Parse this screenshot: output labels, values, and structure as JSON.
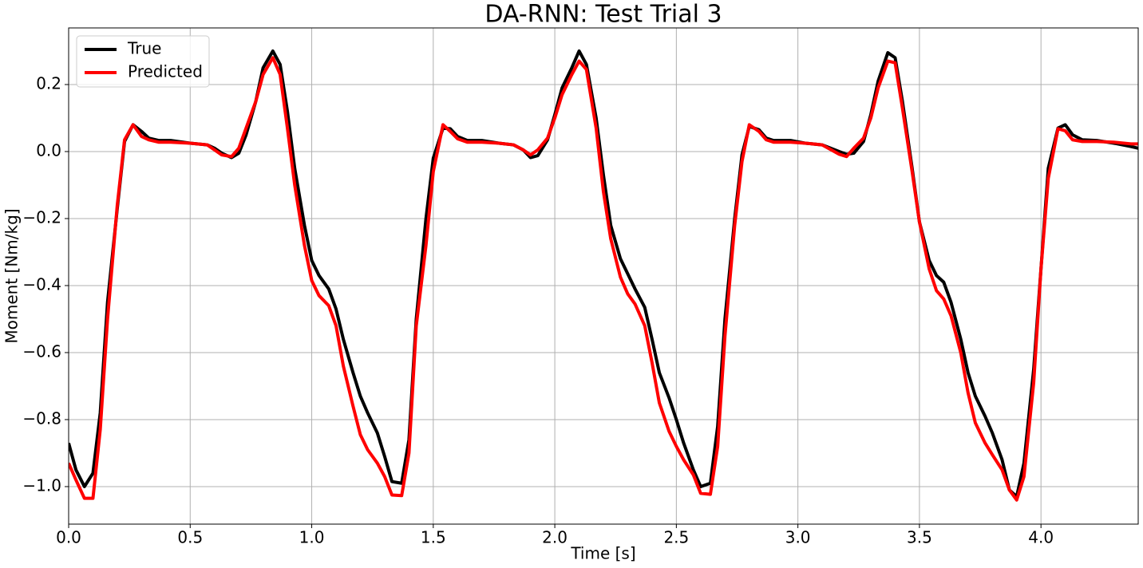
{
  "chart_data": {
    "type": "line",
    "title": "DA-RNN: Test Trial 3",
    "xlabel": "Time [s]",
    "ylabel": "Moment [Nm/kg]",
    "x": [
      0.0,
      0.03,
      0.065,
      0.1,
      0.13,
      0.16,
      0.2,
      0.23,
      0.265,
      0.3,
      0.33,
      0.37,
      0.42,
      0.5,
      0.57,
      0.6,
      0.63,
      0.67,
      0.7,
      0.73,
      0.77,
      0.8,
      0.84,
      0.87,
      0.9,
      0.93,
      0.97,
      1.0,
      1.03,
      1.07,
      1.1,
      1.13,
      1.17,
      1.2,
      1.23,
      1.27,
      1.3,
      1.33,
      1.37,
      1.4,
      1.43,
      1.47,
      1.5,
      1.54,
      1.57,
      1.6,
      1.64,
      1.7,
      1.77,
      1.83,
      1.87,
      1.9,
      1.93,
      1.97,
      2.0,
      2.03,
      2.07,
      2.1,
      2.13,
      2.17,
      2.2,
      2.23,
      2.27,
      2.3,
      2.33,
      2.37,
      2.4,
      2.43,
      2.47,
      2.5,
      2.53,
      2.57,
      2.6,
      2.64,
      2.67,
      2.7,
      2.74,
      2.77,
      2.8,
      2.84,
      2.87,
      2.9,
      2.97,
      3.03,
      3.1,
      3.17,
      3.2,
      3.23,
      3.27,
      3.3,
      3.33,
      3.37,
      3.4,
      3.43,
      3.47,
      3.5,
      3.54,
      3.57,
      3.6,
      3.63,
      3.67,
      3.7,
      3.73,
      3.77,
      3.8,
      3.84,
      3.87,
      3.9,
      3.93,
      3.97,
      4.0,
      4.03,
      4.07,
      4.1,
      4.13,
      4.17,
      4.23,
      4.3,
      4.37,
      4.4
    ],
    "series": [
      {
        "name": "True",
        "color": "#000000",
        "values": [
          -0.87,
          -0.95,
          -1.0,
          -0.96,
          -0.78,
          -0.45,
          -0.17,
          0.03,
          0.08,
          0.06,
          0.04,
          0.033,
          0.033,
          0.025,
          0.02,
          0.01,
          -0.005,
          -0.018,
          -0.005,
          0.05,
          0.15,
          0.25,
          0.3,
          0.26,
          0.12,
          -0.05,
          -0.22,
          -0.325,
          -0.37,
          -0.41,
          -0.47,
          -0.56,
          -0.66,
          -0.73,
          -0.78,
          -0.84,
          -0.91,
          -0.985,
          -0.99,
          -0.86,
          -0.5,
          -0.2,
          -0.02,
          0.07,
          0.068,
          0.045,
          0.033,
          0.033,
          0.025,
          0.02,
          0.005,
          -0.018,
          -0.012,
          0.035,
          0.11,
          0.19,
          0.25,
          0.3,
          0.26,
          0.1,
          -0.07,
          -0.22,
          -0.32,
          -0.365,
          -0.41,
          -0.465,
          -0.56,
          -0.66,
          -0.735,
          -0.8,
          -0.87,
          -0.95,
          -1.0,
          -0.99,
          -0.82,
          -0.5,
          -0.2,
          -0.01,
          0.075,
          0.065,
          0.04,
          0.033,
          0.033,
          0.025,
          0.02,
          0.0,
          -0.008,
          -0.005,
          0.03,
          0.11,
          0.21,
          0.295,
          0.28,
          0.15,
          -0.05,
          -0.21,
          -0.325,
          -0.37,
          -0.39,
          -0.45,
          -0.56,
          -0.66,
          -0.73,
          -0.79,
          -0.84,
          -0.92,
          -1.01,
          -1.03,
          -0.93,
          -0.65,
          -0.35,
          -0.05,
          0.07,
          0.08,
          0.05,
          0.035,
          0.033,
          0.025,
          0.015,
          0.01
        ]
      },
      {
        "name": "Predicted",
        "color": "#ff0000",
        "values": [
          -0.93,
          -0.98,
          -1.035,
          -1.035,
          -0.83,
          -0.5,
          -0.16,
          0.035,
          0.08,
          0.045,
          0.035,
          0.028,
          0.028,
          0.025,
          0.02,
          0.005,
          -0.01,
          -0.015,
          0.01,
          0.07,
          0.15,
          0.23,
          0.28,
          0.23,
          0.07,
          -0.1,
          -0.28,
          -0.385,
          -0.43,
          -0.46,
          -0.52,
          -0.64,
          -0.76,
          -0.845,
          -0.89,
          -0.93,
          -0.97,
          -1.025,
          -1.027,
          -0.9,
          -0.52,
          -0.28,
          -0.06,
          0.08,
          0.06,
          0.038,
          0.028,
          0.028,
          0.025,
          0.02,
          0.005,
          -0.01,
          0.005,
          0.04,
          0.1,
          0.17,
          0.23,
          0.27,
          0.245,
          0.07,
          -0.12,
          -0.26,
          -0.375,
          -0.425,
          -0.455,
          -0.52,
          -0.63,
          -0.75,
          -0.835,
          -0.88,
          -0.92,
          -0.965,
          -1.02,
          -1.023,
          -0.88,
          -0.55,
          -0.22,
          -0.03,
          0.08,
          0.06,
          0.035,
          0.028,
          0.028,
          0.025,
          0.02,
          -0.008,
          -0.015,
          0.01,
          0.04,
          0.1,
          0.19,
          0.27,
          0.265,
          0.13,
          -0.06,
          -0.21,
          -0.35,
          -0.415,
          -0.44,
          -0.49,
          -0.6,
          -0.72,
          -0.81,
          -0.87,
          -0.905,
          -0.95,
          -1.01,
          -1.04,
          -0.97,
          -0.69,
          -0.35,
          -0.08,
          0.068,
          0.062,
          0.035,
          0.03,
          0.03,
          0.028,
          0.023,
          0.023
        ]
      }
    ],
    "xlim": [
      0,
      4.4
    ],
    "ylim": [
      -1.112,
      0.369
    ],
    "xticks": [
      {
        "value": 0,
        "label": "0.0"
      },
      {
        "value": 0.5,
        "label": "0.5"
      },
      {
        "value": 1,
        "label": "1.0"
      },
      {
        "value": 1.5,
        "label": "1.5"
      },
      {
        "value": 2,
        "label": "2.0"
      },
      {
        "value": 2.5,
        "label": "2.5"
      },
      {
        "value": 3,
        "label": "3.0"
      },
      {
        "value": 3.5,
        "label": "3.5"
      },
      {
        "value": 4,
        "label": "4.0"
      }
    ],
    "yticks": [
      {
        "value": -1,
        "label": "−1.0"
      },
      {
        "value": -0.8,
        "label": "−0.8"
      },
      {
        "value": -0.6,
        "label": "−0.6"
      },
      {
        "value": -0.4,
        "label": "−0.4"
      },
      {
        "value": -0.2,
        "label": "−0.2"
      },
      {
        "value": 0,
        "label": "0.0"
      },
      {
        "value": 0.2,
        "label": "0.2"
      }
    ],
    "grid": true,
    "legend": "upper-left"
  }
}
